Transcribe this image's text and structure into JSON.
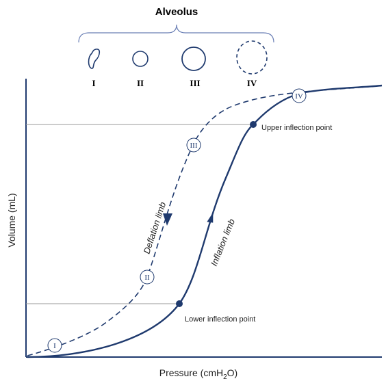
{
  "title": "Alveolus",
  "alveolus_labels": [
    "I",
    "II",
    "III",
    "IV"
  ],
  "curve_markers": [
    "I",
    "II",
    "III",
    "IV"
  ],
  "inflection_points": {
    "upper": "Upper inflection point",
    "lower": "Lower inflection point"
  },
  "limbs": {
    "deflation": "Deflation limb",
    "inflation": "Inflation limb"
  },
  "axes": {
    "y_label": "Volume (mL)",
    "x_label": [
      "Pressure (cmH",
      "2",
      "O)"
    ]
  }
}
